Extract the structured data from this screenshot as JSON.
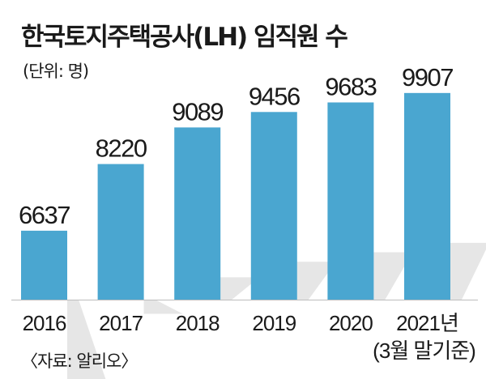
{
  "header": {
    "title": "한국토지주택공사(LH) 임직원 수",
    "unit": "(단위: 명)"
  },
  "footer": {
    "source": "〈자료: 알리오〉"
  },
  "colors": {
    "bar": "#4aa6d0",
    "shadow": "#e6e6e6",
    "baseline": "#bdbdbd",
    "text": "#1a1a1a"
  },
  "chart_data": {
    "type": "bar",
    "categories": [
      "2016",
      "2017",
      "2018",
      "2019",
      "2020",
      "2021년"
    ],
    "category_notes": [
      "",
      "",
      "",
      "",
      "",
      "(3월 말기준)"
    ],
    "values": [
      6637,
      8220,
      9089,
      9456,
      9683,
      9907
    ],
    "title": "한국토지주택공사(LH) 임직원 수",
    "ylabel": "(단위: 명)",
    "ylim": [
      5000,
      10000
    ],
    "grid": false,
    "legend": "none"
  }
}
